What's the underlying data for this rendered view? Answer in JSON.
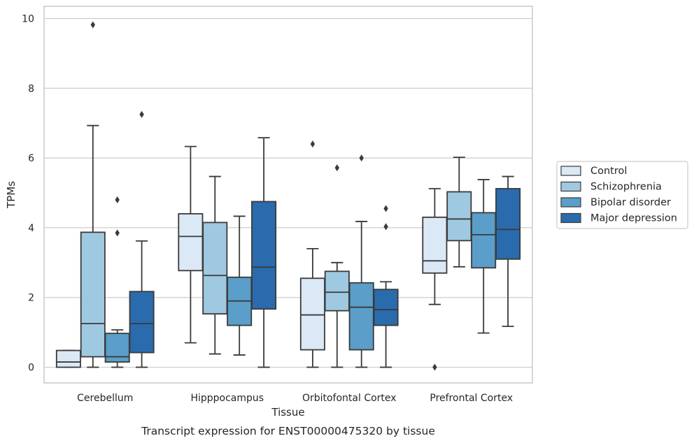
{
  "caption": "Transcript expression for ENST00000475320 by tissue",
  "chart_data": {
    "type": "box",
    "xlabel": "Tissue",
    "ylabel": "TPMs",
    "ylim": [
      -0.45,
      10.35
    ],
    "yticks": [
      0,
      2,
      4,
      6,
      8,
      10
    ],
    "grid": "horizontal",
    "legend_position": "right",
    "categories": [
      "Cerebellum",
      "Hipppocampus",
      "Orbitofontal Cortex",
      "Prefrontal Cortex"
    ],
    "series": [
      {
        "name": "Control",
        "color": "#dbe8f5",
        "boxes": [
          {
            "whislo": 0.0,
            "q1": 0.0,
            "med": 0.15,
            "q3": 0.48,
            "whishi": 0.48,
            "fliers": []
          },
          {
            "whislo": 0.7,
            "q1": 2.77,
            "med": 3.75,
            "q3": 4.4,
            "whishi": 6.33,
            "fliers": []
          },
          {
            "whislo": 0.0,
            "q1": 0.5,
            "med": 1.5,
            "q3": 2.55,
            "whishi": 3.4,
            "fliers": [
              6.4
            ]
          },
          {
            "whislo": 1.8,
            "q1": 2.7,
            "med": 3.05,
            "q3": 4.3,
            "whishi": 5.12,
            "fliers": [
              0.0
            ]
          }
        ]
      },
      {
        "name": "Schizophrenia",
        "color": "#9fc9e0",
        "boxes": [
          {
            "whislo": 0.0,
            "q1": 0.3,
            "med": 1.25,
            "q3": 3.87,
            "whishi": 6.93,
            "fliers": [
              9.82
            ]
          },
          {
            "whislo": 0.38,
            "q1": 1.53,
            "med": 2.63,
            "q3": 4.15,
            "whishi": 5.47,
            "fliers": []
          },
          {
            "whislo": 0.0,
            "q1": 1.62,
            "med": 2.15,
            "q3": 2.75,
            "whishi": 3.0,
            "fliers": [
              5.72
            ]
          },
          {
            "whislo": 2.88,
            "q1": 3.63,
            "med": 4.25,
            "q3": 5.03,
            "whishi": 6.02,
            "fliers": []
          }
        ]
      },
      {
        "name": "Bipolar disorder",
        "color": "#5a9ec9",
        "boxes": [
          {
            "whislo": 0.0,
            "q1": 0.15,
            "med": 0.3,
            "q3": 0.97,
            "whishi": 1.07,
            "fliers": [
              3.85,
              4.8
            ]
          },
          {
            "whislo": 0.35,
            "q1": 1.2,
            "med": 1.9,
            "q3": 2.58,
            "whishi": 4.33,
            "fliers": []
          },
          {
            "whislo": 0.0,
            "q1": 0.5,
            "med": 1.72,
            "q3": 2.42,
            "whishi": 4.18,
            "fliers": [
              6.0
            ]
          },
          {
            "whislo": 0.98,
            "q1": 2.85,
            "med": 3.8,
            "q3": 4.43,
            "whishi": 5.38,
            "fliers": []
          }
        ]
      },
      {
        "name": "Major depression",
        "color": "#2a6bad",
        "boxes": [
          {
            "whislo": 0.0,
            "q1": 0.42,
            "med": 1.25,
            "q3": 2.17,
            "whishi": 3.62,
            "fliers": [
              7.25
            ]
          },
          {
            "whislo": 0.0,
            "q1": 1.67,
            "med": 2.87,
            "q3": 4.75,
            "whishi": 6.58,
            "fliers": []
          },
          {
            "whislo": 0.0,
            "q1": 1.2,
            "med": 1.65,
            "q3": 2.23,
            "whishi": 2.45,
            "fliers": [
              4.03,
              4.55
            ]
          },
          {
            "whislo": 1.17,
            "q1": 3.1,
            "med": 3.95,
            "q3": 5.12,
            "whishi": 5.47,
            "fliers": []
          }
        ]
      }
    ]
  }
}
